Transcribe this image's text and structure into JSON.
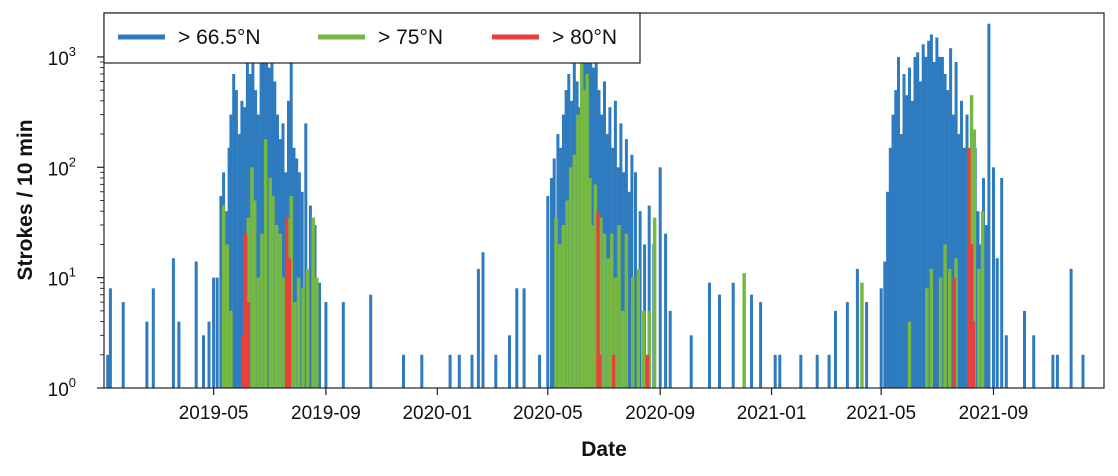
{
  "chart_data": {
    "type": "bar",
    "title": "",
    "xlabel": "Date",
    "ylabel": "Strokes / 10 min",
    "yscale": "log",
    "ylim": [
      1,
      2500
    ],
    "xlim": [
      "2019-01-01",
      "2021-12-31"
    ],
    "x_ticks": [
      "2019-05-01",
      "2019-09-01",
      "2020-01-01",
      "2020-05-01",
      "2020-09-01",
      "2021-01-01",
      "2021-05-01",
      "2021-09-01"
    ],
    "x_tick_labels": [
      "2019-05",
      "2019-09",
      "2020-01",
      "2020-05",
      "2020-09",
      "2021-01",
      "2021-05",
      "2021-09"
    ],
    "y_ticks": [
      1,
      10,
      100,
      1000
    ],
    "legend_position": "top-left",
    "grid": false,
    "series": [
      {
        "name": "> 66.5°N",
        "color": "#2f7bbf",
        "points": [
          [
            "2019-01-05",
            2
          ],
          [
            "2019-01-08",
            8
          ],
          [
            "2019-01-22",
            6
          ],
          [
            "2019-02-17",
            4
          ],
          [
            "2019-02-24",
            8
          ],
          [
            "2019-03-18",
            15
          ],
          [
            "2019-03-24",
            4
          ],
          [
            "2019-04-12",
            14
          ],
          [
            "2019-04-20",
            3
          ],
          [
            "2019-04-26",
            4
          ],
          [
            "2019-05-01",
            10
          ],
          [
            "2019-05-05",
            10
          ],
          [
            "2019-05-09",
            55
          ],
          [
            "2019-05-12",
            90
          ],
          [
            "2019-05-15",
            40
          ],
          [
            "2019-05-18",
            150
          ],
          [
            "2019-05-20",
            300
          ],
          [
            "2019-05-23",
            700
          ],
          [
            "2019-05-26",
            500
          ],
          [
            "2019-05-29",
            200
          ],
          [
            "2019-06-01",
            400
          ],
          [
            "2019-06-04",
            350
          ],
          [
            "2019-06-07",
            1400
          ],
          [
            "2019-06-10",
            700
          ],
          [
            "2019-06-13",
            1100
          ],
          [
            "2019-06-16",
            500
          ],
          [
            "2019-06-19",
            300
          ],
          [
            "2019-06-22",
            1300
          ],
          [
            "2019-06-25",
            1000
          ],
          [
            "2019-06-28",
            1700
          ],
          [
            "2019-07-01",
            800
          ],
          [
            "2019-07-04",
            1500
          ],
          [
            "2019-07-07",
            600
          ],
          [
            "2019-07-10",
            300
          ],
          [
            "2019-07-13",
            180
          ],
          [
            "2019-07-16",
            250
          ],
          [
            "2019-07-19",
            90
          ],
          [
            "2019-07-22",
            400
          ],
          [
            "2019-07-25",
            1000
          ],
          [
            "2019-07-28",
            150
          ],
          [
            "2019-07-31",
            120
          ],
          [
            "2019-08-03",
            90
          ],
          [
            "2019-08-06",
            60
          ],
          [
            "2019-08-10",
            250
          ],
          [
            "2019-08-15",
            45
          ],
          [
            "2019-08-20",
            30
          ],
          [
            "2019-08-25",
            9
          ],
          [
            "2019-09-01",
            6
          ],
          [
            "2019-09-20",
            6
          ],
          [
            "2019-10-20",
            7
          ],
          [
            "2019-11-25",
            2
          ],
          [
            "2019-12-15",
            2
          ],
          [
            "2020-01-15",
            2
          ],
          [
            "2020-01-25",
            2
          ],
          [
            "2020-02-08",
            2
          ],
          [
            "2020-02-15",
            12
          ],
          [
            "2020-02-20",
            17
          ],
          [
            "2020-03-05",
            2
          ],
          [
            "2020-03-20",
            3
          ],
          [
            "2020-03-28",
            8
          ],
          [
            "2020-04-05",
            8
          ],
          [
            "2020-04-22",
            2
          ],
          [
            "2020-05-01",
            55
          ],
          [
            "2020-05-05",
            80
          ],
          [
            "2020-05-08",
            120
          ],
          [
            "2020-05-12",
            200
          ],
          [
            "2020-05-15",
            150
          ],
          [
            "2020-05-18",
            300
          ],
          [
            "2020-05-21",
            500
          ],
          [
            "2020-05-24",
            700
          ],
          [
            "2020-05-27",
            400
          ],
          [
            "2020-05-30",
            1000
          ],
          [
            "2020-06-02",
            600
          ],
          [
            "2020-06-05",
            350
          ],
          [
            "2020-06-08",
            900
          ],
          [
            "2020-06-11",
            1700
          ],
          [
            "2020-06-14",
            1200
          ],
          [
            "2020-06-17",
            1500
          ],
          [
            "2020-06-20",
            800
          ],
          [
            "2020-06-23",
            1000
          ],
          [
            "2020-06-26",
            500
          ],
          [
            "2020-06-29",
            300
          ],
          [
            "2020-07-02",
            600
          ],
          [
            "2020-07-05",
            200
          ],
          [
            "2020-07-08",
            350
          ],
          [
            "2020-07-11",
            150
          ],
          [
            "2020-07-14",
            400
          ],
          [
            "2020-07-17",
            100
          ],
          [
            "2020-07-20",
            250
          ],
          [
            "2020-07-23",
            90
          ],
          [
            "2020-07-26",
            180
          ],
          [
            "2020-07-29",
            60
          ],
          [
            "2020-08-01",
            130
          ],
          [
            "2020-08-05",
            90
          ],
          [
            "2020-08-10",
            40
          ],
          [
            "2020-08-15",
            20
          ],
          [
            "2020-08-20",
            45
          ],
          [
            "2020-08-25",
            20
          ],
          [
            "2020-09-01",
            100
          ],
          [
            "2020-09-07",
            25
          ],
          [
            "2020-09-12",
            5
          ],
          [
            "2020-10-05",
            3
          ],
          [
            "2020-10-25",
            9
          ],
          [
            "2020-11-05",
            7
          ],
          [
            "2020-11-20",
            9
          ],
          [
            "2020-12-10",
            7
          ],
          [
            "2020-12-20",
            6
          ],
          [
            "2021-01-05",
            2
          ],
          [
            "2021-01-10",
            2
          ],
          [
            "2021-02-02",
            2
          ],
          [
            "2021-02-20",
            2
          ],
          [
            "2021-03-05",
            2
          ],
          [
            "2021-03-12",
            5
          ],
          [
            "2021-03-25",
            6
          ],
          [
            "2021-04-05",
            12
          ],
          [
            "2021-04-15",
            6
          ],
          [
            "2021-05-01",
            8
          ],
          [
            "2021-05-05",
            14
          ],
          [
            "2021-05-08",
            60
          ],
          [
            "2021-05-11",
            150
          ],
          [
            "2021-05-14",
            300
          ],
          [
            "2021-05-17",
            500
          ],
          [
            "2021-05-20",
            1000
          ],
          [
            "2021-05-23",
            200
          ],
          [
            "2021-05-26",
            700
          ],
          [
            "2021-05-29",
            450
          ],
          [
            "2021-06-01",
            800
          ],
          [
            "2021-06-04",
            400
          ],
          [
            "2021-06-07",
            1000
          ],
          [
            "2021-06-10",
            1100
          ],
          [
            "2021-06-13",
            600
          ],
          [
            "2021-06-16",
            1300
          ],
          [
            "2021-06-19",
            1000
          ],
          [
            "2021-06-22",
            1400
          ],
          [
            "2021-06-25",
            1600
          ],
          [
            "2021-06-28",
            900
          ],
          [
            "2021-07-01",
            1500
          ],
          [
            "2021-07-04",
            1000
          ],
          [
            "2021-07-07",
            1000
          ],
          [
            "2021-07-10",
            700
          ],
          [
            "2021-07-13",
            500
          ],
          [
            "2021-07-16",
            1200
          ],
          [
            "2021-07-19",
            300
          ],
          [
            "2021-07-22",
            900
          ],
          [
            "2021-07-25",
            200
          ],
          [
            "2021-07-28",
            400
          ],
          [
            "2021-07-31",
            150
          ],
          [
            "2021-08-03",
            300
          ],
          [
            "2021-08-06",
            100
          ],
          [
            "2021-08-09",
            60
          ],
          [
            "2021-08-12",
            150
          ],
          [
            "2021-08-15",
            40
          ],
          [
            "2021-08-18",
            20
          ],
          [
            "2021-08-21",
            80
          ],
          [
            "2021-08-24",
            30
          ],
          [
            "2021-08-27",
            2000
          ],
          [
            "2021-09-01",
            100
          ],
          [
            "2021-09-05",
            15
          ],
          [
            "2021-09-10",
            80
          ],
          [
            "2021-09-15",
            3
          ],
          [
            "2021-10-05",
            5
          ],
          [
            "2021-10-15",
            3
          ],
          [
            "2021-11-05",
            2
          ],
          [
            "2021-11-10",
            2
          ],
          [
            "2021-11-25",
            12
          ],
          [
            "2021-12-08",
            2
          ]
        ]
      },
      {
        "name": "> 75°N",
        "color": "#77b843",
        "points": [
          [
            "2019-05-12",
            45
          ],
          [
            "2019-05-16",
            20
          ],
          [
            "2019-05-20",
            5
          ],
          [
            "2019-06-05",
            5
          ],
          [
            "2019-06-08",
            35
          ],
          [
            "2019-06-12",
            100
          ],
          [
            "2019-06-15",
            50
          ],
          [
            "2019-06-19",
            10
          ],
          [
            "2019-06-23",
            25
          ],
          [
            "2019-06-27",
            180
          ],
          [
            "2019-07-02",
            80
          ],
          [
            "2019-07-05",
            55
          ],
          [
            "2019-07-09",
            30
          ],
          [
            "2019-07-13",
            25
          ],
          [
            "2019-07-17",
            10
          ],
          [
            "2019-07-21",
            35
          ],
          [
            "2019-07-25",
            55
          ],
          [
            "2019-07-29",
            6
          ],
          [
            "2019-08-02",
            10
          ],
          [
            "2019-08-07",
            8
          ],
          [
            "2019-08-12",
            12
          ],
          [
            "2019-08-18",
            35
          ],
          [
            "2019-08-22",
            10
          ],
          [
            "2020-05-10",
            35
          ],
          [
            "2020-05-14",
            20
          ],
          [
            "2020-05-18",
            30
          ],
          [
            "2020-05-22",
            50
          ],
          [
            "2020-05-26",
            100
          ],
          [
            "2020-05-30",
            130
          ],
          [
            "2020-06-03",
            300
          ],
          [
            "2020-06-07",
            1200
          ],
          [
            "2020-06-10",
            500
          ],
          [
            "2020-06-13",
            700
          ],
          [
            "2020-06-16",
            80
          ],
          [
            "2020-06-19",
            30
          ],
          [
            "2020-06-22",
            70
          ],
          [
            "2020-06-25",
            10
          ],
          [
            "2020-06-28",
            35
          ],
          [
            "2020-07-02",
            25
          ],
          [
            "2020-07-06",
            15
          ],
          [
            "2020-07-10",
            25
          ],
          [
            "2020-07-14",
            10
          ],
          [
            "2020-07-18",
            30
          ],
          [
            "2020-07-22",
            5
          ],
          [
            "2020-07-26",
            25
          ],
          [
            "2020-08-02",
            10
          ],
          [
            "2020-08-08",
            12
          ],
          [
            "2020-08-14",
            5
          ],
          [
            "2020-08-20",
            5
          ],
          [
            "2020-08-26",
            35
          ],
          [
            "2020-12-02",
            11
          ],
          [
            "2021-04-10",
            9
          ],
          [
            "2021-06-01",
            4
          ],
          [
            "2021-06-20",
            8
          ],
          [
            "2021-06-25",
            12
          ],
          [
            "2021-07-05",
            10
          ],
          [
            "2021-07-10",
            20
          ],
          [
            "2021-07-15",
            12
          ],
          [
            "2021-07-22",
            15
          ],
          [
            "2021-08-05",
            130
          ],
          [
            "2021-08-08",
            450
          ],
          [
            "2021-08-11",
            220
          ],
          [
            "2021-08-16",
            12
          ],
          [
            "2021-08-20",
            40
          ]
        ]
      },
      {
        "name": "> 80°N",
        "color": "#e8403c",
        "points": [
          [
            "2019-06-02",
            3
          ],
          [
            "2019-06-05",
            25
          ],
          [
            "2019-06-08",
            6
          ],
          [
            "2019-07-20",
            35
          ],
          [
            "2019-07-23",
            15
          ],
          [
            "2020-06-25",
            40
          ],
          [
            "2020-06-27",
            2
          ],
          [
            "2020-07-12",
            2
          ],
          [
            "2020-08-18",
            2
          ],
          [
            "2021-07-20",
            10
          ],
          [
            "2021-08-05",
            150
          ],
          [
            "2021-08-08",
            20
          ],
          [
            "2021-08-10",
            4
          ]
        ]
      }
    ]
  }
}
